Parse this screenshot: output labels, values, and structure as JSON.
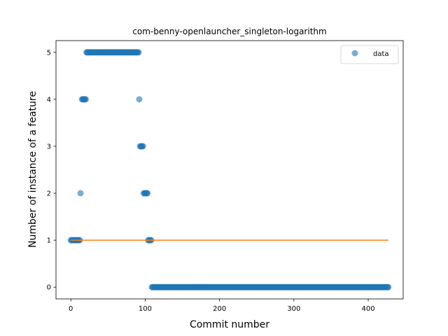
{
  "chart_data": {
    "type": "scatter",
    "title": "com-benny-openlauncher_singleton-logarithm",
    "xlabel": "Commit number",
    "ylabel": "Number of instance of a feature",
    "xlim": [
      -20,
      447
    ],
    "ylim": [
      -0.25,
      5.25
    ],
    "xticks": [
      0,
      100,
      200,
      300,
      400
    ],
    "yticks": [
      0,
      1,
      2,
      3,
      4,
      5
    ],
    "grid": false,
    "legend": {
      "placement": "top-right",
      "entries": [
        "data"
      ]
    },
    "series": [
      {
        "name": "data",
        "kind": "scatter",
        "color": "#1f77b4",
        "segments": [
          {
            "x_from": 0,
            "x_to": 12,
            "y": 1
          },
          {
            "x_from": 13,
            "x_to": 13,
            "y": 2
          },
          {
            "x_from": 15,
            "x_to": 20,
            "y": 4
          },
          {
            "x_from": 21,
            "x_to": 91,
            "y": 5
          },
          {
            "x_from": 92,
            "x_to": 92,
            "y": 4
          },
          {
            "x_from": 93,
            "x_to": 97,
            "y": 3
          },
          {
            "x_from": 98,
            "x_to": 103,
            "y": 2
          },
          {
            "x_from": 104,
            "x_to": 108,
            "y": 1
          },
          {
            "x_from": 109,
            "x_to": 427,
            "y": 0
          }
        ]
      },
      {
        "name": "",
        "kind": "line",
        "color": "#ff7f0e",
        "x": [
          0,
          427
        ],
        "y": [
          1,
          1
        ]
      }
    ]
  }
}
